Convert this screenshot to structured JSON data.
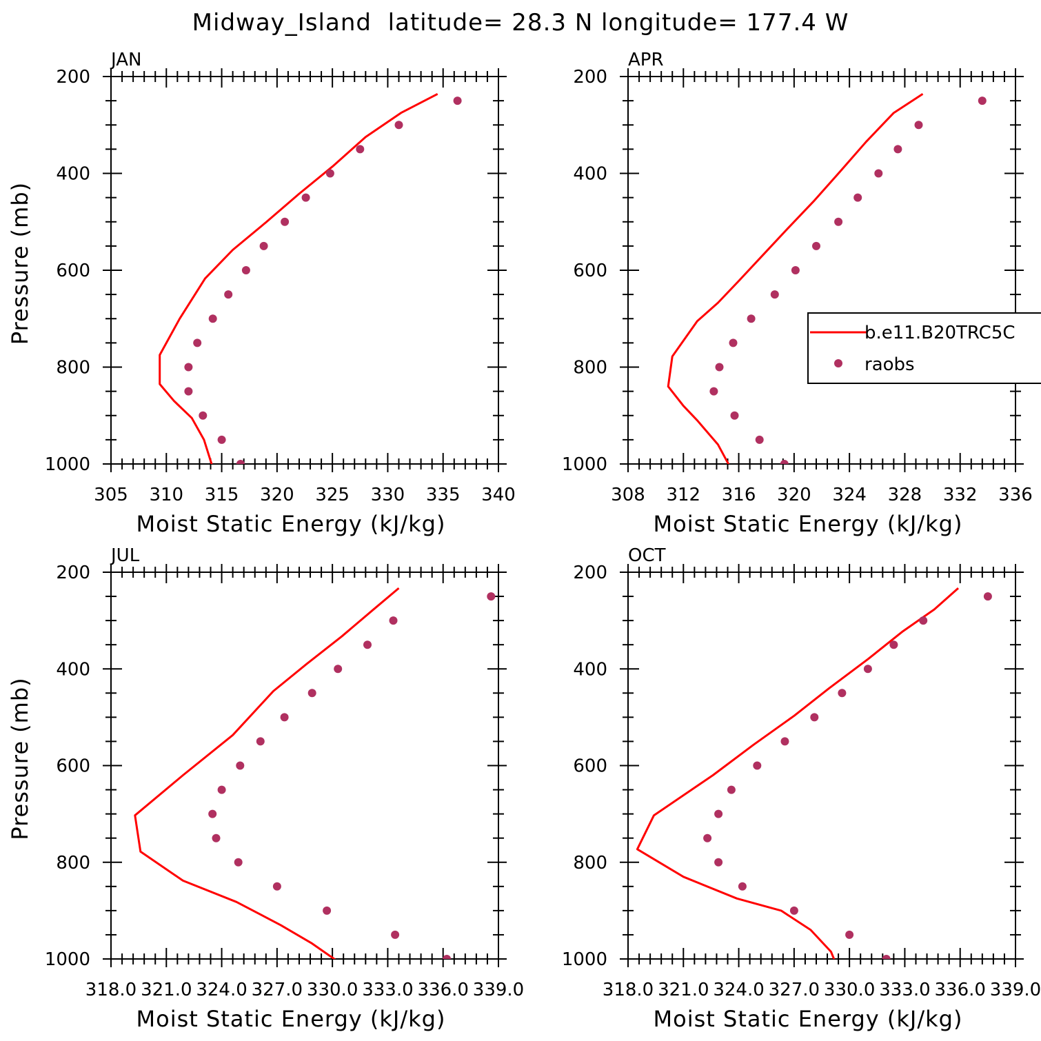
{
  "figure": {
    "title": "Midway_Island  latitude= 28.3 N longitude= 177.4 W"
  },
  "legend": {
    "model_label": "b.e11.B20TRC5C",
    "obs_label": "raobs",
    "model_color": "#ff0000",
    "obs_color": "#b03060"
  },
  "chart_data": [
    {
      "type": "line",
      "title": "JAN",
      "xlabel": "Moist Static Energy (kJ/kg)",
      "ylabel": "Pressure (mb)",
      "xlim": [
        305,
        340
      ],
      "ylim": [
        1000,
        200
      ],
      "x_ticks": [
        "305",
        "310",
        "315",
        "320",
        "325",
        "330",
        "335",
        "340"
      ],
      "y_ticks": [
        "200",
        "400",
        "600",
        "800",
        "1000"
      ],
      "series": [
        {
          "name": "b.e11.B20TRC5C",
          "style": "line",
          "x": [
            334.5,
            331.2,
            328.0,
            325.0,
            322.0,
            319.0,
            316.0,
            313.5,
            311.2,
            309.4,
            309.4,
            310.7,
            312.3,
            313.4,
            314.2
          ],
          "y": [
            236,
            275,
            325,
            386,
            442,
            501,
            558,
            617,
            700,
            775,
            835,
            870,
            905,
            950,
            1008
          ]
        },
        {
          "name": "raobs",
          "style": "markers",
          "x": [
            336.3,
            331.0,
            327.5,
            324.8,
            322.6,
            320.7,
            318.8,
            317.2,
            315.6,
            314.2,
            312.8,
            312.0,
            312.0,
            313.3,
            315.0,
            316.7
          ],
          "y": [
            250,
            300,
            350,
            400,
            450,
            500,
            550,
            600,
            650,
            700,
            750,
            800,
            850,
            900,
            950,
            1000
          ]
        }
      ]
    },
    {
      "type": "line",
      "title": "APR",
      "xlabel": "Moist Static Energy (kJ/kg)",
      "ylabel": "",
      "xlim": [
        308,
        336
      ],
      "ylim": [
        1000,
        200
      ],
      "x_ticks": [
        "308",
        "312",
        "316",
        "320",
        "324",
        "328",
        "332",
        "336"
      ],
      "y_ticks": [
        "200",
        "400",
        "600",
        "800",
        "1000"
      ],
      "legend_position": "right",
      "series": [
        {
          "name": "b.e11.B20TRC5C",
          "style": "line",
          "x": [
            329.3,
            327.2,
            325.2,
            323.3,
            321.4,
            319.6,
            317.8,
            316.0,
            314.5,
            313.0,
            311.2,
            310.9,
            312.0,
            313.0,
            314.5,
            315.5
          ],
          "y": [
            236,
            275,
            335,
            397,
            458,
            512,
            567,
            622,
            667,
            705,
            778,
            840,
            880,
            910,
            960,
            1013
          ]
        },
        {
          "name": "raobs",
          "style": "markers",
          "x": [
            333.6,
            329.0,
            327.5,
            326.1,
            324.6,
            323.2,
            321.6,
            320.1,
            318.6,
            316.9,
            315.6,
            314.6,
            314.2,
            315.7,
            317.5,
            319.3
          ],
          "y": [
            250,
            300,
            350,
            400,
            450,
            500,
            550,
            600,
            650,
            700,
            750,
            800,
            850,
            900,
            950,
            1000
          ]
        }
      ]
    },
    {
      "type": "line",
      "title": "JUL",
      "xlabel": "Moist Static Energy (kJ/kg)",
      "ylabel": "Pressure (mb)",
      "xlim": [
        318.0,
        339.0
      ],
      "ylim": [
        1000,
        200
      ],
      "x_ticks": [
        "318.0",
        "321.0",
        "324.0",
        "327.0",
        "330.0",
        "333.0",
        "336.0",
        "339.0"
      ],
      "y_ticks": [
        "200",
        "400",
        "600",
        "800",
        "1000"
      ],
      "series": [
        {
          "name": "b.e11.B20TRC5C",
          "style": "line",
          "x": [
            333.6,
            332.2,
            330.5,
            328.6,
            326.8,
            324.6,
            321.9,
            319.3,
            319.6,
            321.9,
            324.8,
            327.2,
            328.9,
            330.1,
            330.8,
            331.0
          ],
          "y": [
            233,
            278,
            333,
            390,
            446,
            537,
            620,
            703,
            778,
            838,
            882,
            930,
            968,
            1000,
            1020,
            1030
          ]
        },
        {
          "name": "raobs",
          "style": "markers",
          "x": [
            338.6,
            333.3,
            331.9,
            330.3,
            328.9,
            327.4,
            326.1,
            325.0,
            324.0,
            323.5,
            323.7,
            324.9,
            327.0,
            329.7,
            333.4,
            336.2
          ],
          "y": [
            250,
            300,
            350,
            400,
            450,
            500,
            550,
            600,
            650,
            700,
            750,
            800,
            850,
            900,
            950,
            1000
          ]
        }
      ]
    },
    {
      "type": "line",
      "title": "OCT",
      "xlabel": "Moist Static Energy (kJ/kg)",
      "ylabel": "",
      "xlim": [
        318.0,
        339.0
      ],
      "ylim": [
        1000,
        200
      ],
      "x_ticks": [
        "318.0",
        "321.0",
        "324.0",
        "327.0",
        "330.0",
        "333.0",
        "336.0",
        "339.0"
      ],
      "y_ticks": [
        "200",
        "400",
        "600",
        "800",
        "1000"
      ],
      "series": [
        {
          "name": "b.e11.B20TRC5C",
          "style": "line",
          "x": [
            335.9,
            334.6,
            332.9,
            331.0,
            328.9,
            327.0,
            324.8,
            322.6,
            319.4,
            318.5,
            321.0,
            323.9,
            326.3,
            327.9,
            329.0,
            329.3
          ],
          "y": [
            233,
            277,
            322,
            380,
            440,
            497,
            557,
            620,
            703,
            773,
            830,
            875,
            900,
            940,
            985,
            1013
          ]
        },
        {
          "name": "raobs",
          "style": "markers",
          "x": [
            337.5,
            334.0,
            332.4,
            331.0,
            329.6,
            328.1,
            326.5,
            325.0,
            323.6,
            322.9,
            322.3,
            322.9,
            324.2,
            327.0,
            330.0,
            332.0
          ],
          "y": [
            250,
            300,
            350,
            400,
            450,
            500,
            550,
            600,
            650,
            700,
            750,
            800,
            850,
            900,
            950,
            1000
          ]
        }
      ]
    }
  ]
}
